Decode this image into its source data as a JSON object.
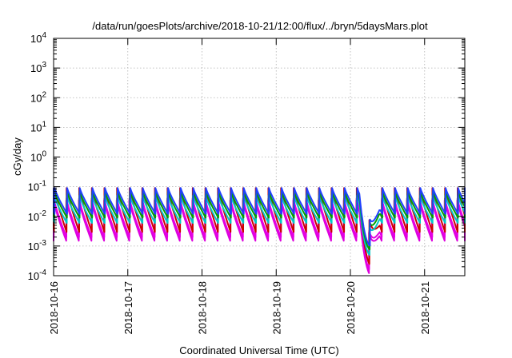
{
  "chart_data": {
    "type": "line",
    "title": "/data/run/goesPlots/archive/2018-10-21/12:00/flux/../bryn/5daysMars.plot",
    "xlabel": "Coordinated Universal Time (UTC)",
    "ylabel": "cGy/day",
    "yscale": "log",
    "ylim": [
      0.0001,
      10000
    ],
    "xlim": [
      "2018-10-16T00:00",
      "2018-10-21T13:00"
    ],
    "grid": true,
    "legend": "none",
    "x_ticks": [
      "2018-10-16",
      "2018-10-17",
      "2018-10-18",
      "2018-10-19",
      "2018-10-20",
      "2018-10-21"
    ],
    "y_ticks": [
      {
        "value": 0.0001,
        "base": "10",
        "exp": "-4"
      },
      {
        "value": 0.001,
        "base": "10",
        "exp": "-3"
      },
      {
        "value": 0.01,
        "base": "10",
        "exp": "-2"
      },
      {
        "value": 0.1,
        "base": "10",
        "exp": "-1"
      },
      {
        "value": 1,
        "base": "10",
        "exp": "0"
      },
      {
        "value": 10,
        "base": "10",
        "exp": "1"
      },
      {
        "value": 100,
        "base": "10",
        "exp": "2"
      },
      {
        "value": 1000,
        "base": "10",
        "exp": "3"
      },
      {
        "value": 10000,
        "base": "10",
        "exp": "4"
      }
    ],
    "cycle_hours": 4.08,
    "series": [
      {
        "color": "#dd00dd",
        "peak": 0.035,
        "trough": 0.0015
      },
      {
        "color": "#e400e4",
        "peak": 0.04,
        "trough": 0.002
      },
      {
        "color": "#cc0000",
        "peak": 0.09,
        "trough": 0.003
      },
      {
        "color": "#00c8c8",
        "peak": 0.05,
        "trough": 0.006
      },
      {
        "color": "#00a000",
        "peak": 0.07,
        "trough": 0.009
      },
      {
        "color": "#2040ff",
        "peak": 0.09,
        "trough": 0.012
      }
    ],
    "dip": {
      "start": "2018-10-20T03:00",
      "end": "2018-10-20T09:30",
      "min_factor": 0.08
    }
  }
}
